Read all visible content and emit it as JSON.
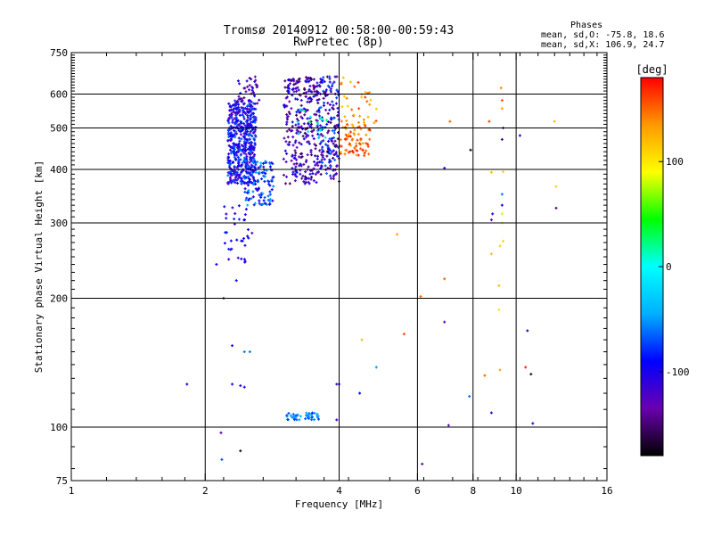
{
  "chart_data": {
    "type": "scatter",
    "title": "Tromsø 20140912 00:58:00-00:59:43",
    "subtitle": "RwPretec (8p)",
    "xlabel": "Frequency [MHz]",
    "ylabel": "Stationary phase Virtual Height [km]",
    "x_scale": "log",
    "y_scale": "log",
    "xlim": [
      1,
      16
    ],
    "ylim": [
      75,
      750
    ],
    "x_ticks": [
      1,
      2,
      4,
      6,
      8,
      10,
      16
    ],
    "y_ticks": [
      75,
      100,
      200,
      300,
      400,
      500,
      600,
      750
    ],
    "x_grid": [
      2,
      4,
      6,
      8,
      10
    ],
    "y_grid": [
      100,
      200,
      300,
      400,
      500,
      600
    ],
    "phases_header": "Phases",
    "phases_o": "mean, sd,O: -75.8, 18.6",
    "phases_x": "mean, sd,X: 106.9, 24.7",
    "colorbar": {
      "label": "[deg]",
      "range": [
        -180,
        180
      ],
      "ticks": [
        100,
        0,
        -100
      ],
      "colors": [
        "#000000",
        "#6a00b0",
        "#0000ff",
        "#00b0ff",
        "#00ffff",
        "#00ff00",
        "#ffff00",
        "#ff9900",
        "#ff0000"
      ]
    },
    "point_groups": [
      {
        "freq": [
          2.25,
          2.6
        ],
        "height": [
          370,
          580
        ],
        "phase": [
          -130,
          -60
        ],
        "count": 520
      },
      {
        "freq": [
          2.45,
          2.85
        ],
        "height": [
          330,
          420
        ],
        "phase": [
          -110,
          -40
        ],
        "count": 110
      },
      {
        "freq": [
          2.35,
          2.65
        ],
        "height": [
          560,
          660
        ],
        "phase": [
          -150,
          -90
        ],
        "count": 40
      },
      {
        "freq": [
          2.2,
          2.55
        ],
        "height": [
          240,
          330
        ],
        "phase": [
          -120,
          -80
        ],
        "count": 35
      },
      {
        "freq": [
          3.0,
          3.6
        ],
        "height": [
          370,
          660
        ],
        "phase": [
          -160,
          -90
        ],
        "count": 280
      },
      {
        "freq": [
          3.6,
          4.0
        ],
        "height": [
          380,
          660
        ],
        "phase": [
          -160,
          -60
        ],
        "count": 180
      },
      {
        "freq": [
          3.2,
          3.8
        ],
        "height": [
          470,
          560
        ],
        "phase": [
          -40,
          30
        ],
        "count": 20
      },
      {
        "freq": [
          4.0,
          4.7
        ],
        "height": [
          430,
          510
        ],
        "phase": [
          120,
          175
        ],
        "count": 70
      },
      {
        "freq": [
          4.0,
          4.9
        ],
        "height": [
          500,
          660
        ],
        "phase": [
          110,
          170
        ],
        "count": 35
      },
      {
        "freq": [
          3.05,
          3.6
        ],
        "height": [
          104,
          108
        ],
        "phase": [
          -80,
          -40
        ],
        "count": 45
      }
    ],
    "points": [
      {
        "x": 1.82,
        "y": 126,
        "phase": -95
      },
      {
        "x": 2.12,
        "y": 240,
        "phase": -100
      },
      {
        "x": 2.2,
        "y": 200,
        "phase": -130
      },
      {
        "x": 2.35,
        "y": 220,
        "phase": -90
      },
      {
        "x": 2.3,
        "y": 155,
        "phase": -100
      },
      {
        "x": 2.45,
        "y": 150,
        "phase": -60
      },
      {
        "x": 2.52,
        "y": 150,
        "phase": -60
      },
      {
        "x": 2.3,
        "y": 126,
        "phase": -110
      },
      {
        "x": 2.4,
        "y": 125,
        "phase": -110
      },
      {
        "x": 2.45,
        "y": 124,
        "phase": -100
      },
      {
        "x": 2.17,
        "y": 97,
        "phase": -130
      },
      {
        "x": 2.18,
        "y": 84,
        "phase": -70
      },
      {
        "x": 2.4,
        "y": 88,
        "phase": -170
      },
      {
        "x": 3.95,
        "y": 126,
        "phase": -120
      },
      {
        "x": 4.0,
        "y": 126,
        "phase": -110
      },
      {
        "x": 3.95,
        "y": 104,
        "phase": -120
      },
      {
        "x": 4.0,
        "y": 375,
        "phase": -120
      },
      {
        "x": 4.5,
        "y": 160,
        "phase": 120
      },
      {
        "x": 4.45,
        "y": 120,
        "phase": -90
      },
      {
        "x": 4.85,
        "y": 138,
        "phase": -50
      },
      {
        "x": 5.4,
        "y": 282,
        "phase": 130
      },
      {
        "x": 5.6,
        "y": 165,
        "phase": 160
      },
      {
        "x": 6.1,
        "y": 202,
        "phase": 150
      },
      {
        "x": 6.15,
        "y": 82,
        "phase": -130
      },
      {
        "x": 6.9,
        "y": 222,
        "phase": 150
      },
      {
        "x": 6.9,
        "y": 176,
        "phase": -120
      },
      {
        "x": 7.05,
        "y": 101,
        "phase": -130
      },
      {
        "x": 7.1,
        "y": 518,
        "phase": 150
      },
      {
        "x": 6.9,
        "y": 403,
        "phase": -110
      },
      {
        "x": 7.9,
        "y": 444,
        "phase": -170
      },
      {
        "x": 7.85,
        "y": 118,
        "phase": -60
      },
      {
        "x": 8.5,
        "y": 132,
        "phase": 150
      },
      {
        "x": 8.8,
        "y": 108,
        "phase": -110
      },
      {
        "x": 8.7,
        "y": 518,
        "phase": 160
      },
      {
        "x": 8.8,
        "y": 394,
        "phase": 120
      },
      {
        "x": 8.85,
        "y": 315,
        "phase": -110
      },
      {
        "x": 8.8,
        "y": 305,
        "phase": -120
      },
      {
        "x": 8.8,
        "y": 254,
        "phase": 120
      },
      {
        "x": 9.2,
        "y": 265,
        "phase": 110
      },
      {
        "x": 9.15,
        "y": 214,
        "phase": 120
      },
      {
        "x": 9.15,
        "y": 188,
        "phase": 100
      },
      {
        "x": 9.2,
        "y": 136,
        "phase": 130
      },
      {
        "x": 9.3,
        "y": 350,
        "phase": -60
      },
      {
        "x": 9.3,
        "y": 330,
        "phase": -100
      },
      {
        "x": 9.3,
        "y": 315,
        "phase": 80
      },
      {
        "x": 9.3,
        "y": 300,
        "phase": 100
      },
      {
        "x": 9.35,
        "y": 272,
        "phase": 110
      },
      {
        "x": 9.3,
        "y": 470,
        "phase": -150
      },
      {
        "x": 9.35,
        "y": 500,
        "phase": -120
      },
      {
        "x": 9.3,
        "y": 580,
        "phase": 160
      },
      {
        "x": 9.25,
        "y": 620,
        "phase": 140
      },
      {
        "x": 9.3,
        "y": 555,
        "phase": 130
      },
      {
        "x": 9.35,
        "y": 395,
        "phase": 110
      },
      {
        "x": 10.2,
        "y": 480,
        "phase": -110
      },
      {
        "x": 10.5,
        "y": 138,
        "phase": 170
      },
      {
        "x": 10.8,
        "y": 133,
        "phase": -170
      },
      {
        "x": 10.6,
        "y": 168,
        "phase": -110
      },
      {
        "x": 10.9,
        "y": 102,
        "phase": -120
      },
      {
        "x": 12.2,
        "y": 518,
        "phase": 120
      },
      {
        "x": 12.3,
        "y": 365,
        "phase": 110
      },
      {
        "x": 12.3,
        "y": 325,
        "phase": -150
      }
    ]
  }
}
